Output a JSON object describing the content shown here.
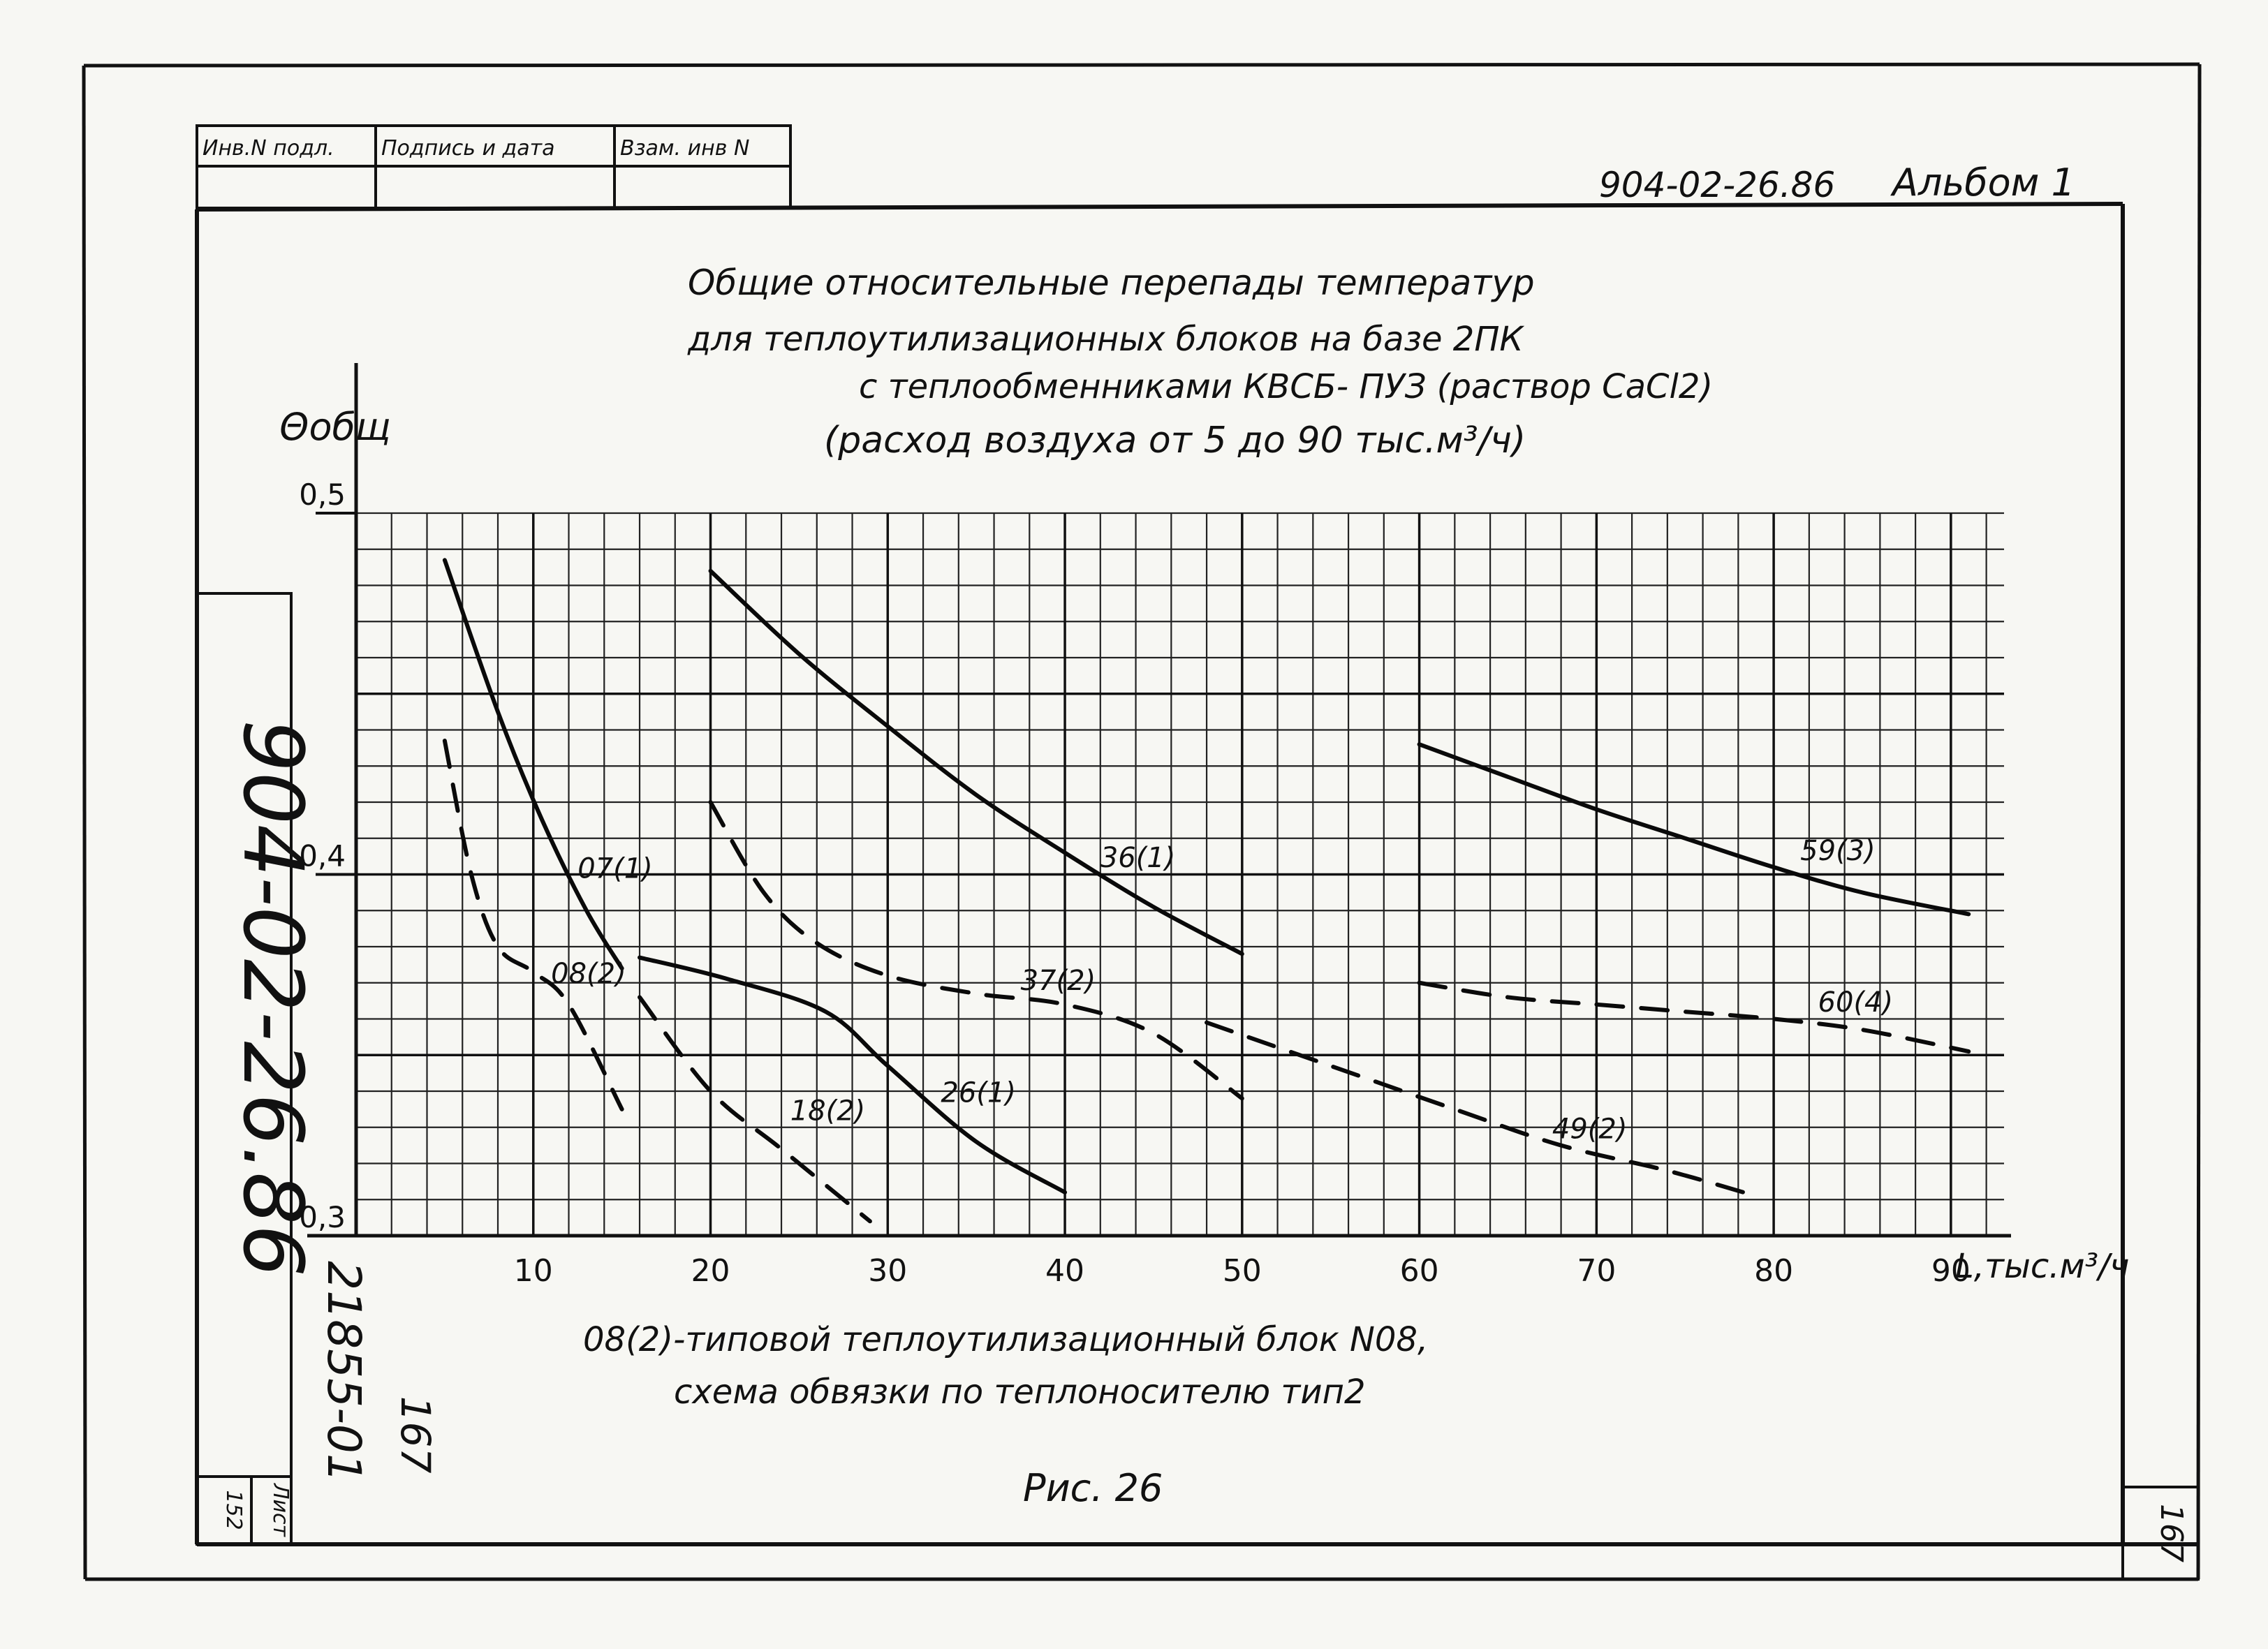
{
  "header": {
    "table_headers": [
      "Инв.N подл.",
      "Подпись и дата",
      "Взам. инв N"
    ],
    "doc_code": "904-02-26.86",
    "album": "Альбом 1"
  },
  "side": {
    "vertical_code": "904-02-26.86",
    "handwritten_code": "21855-01",
    "handwritten_sheet": "167",
    "sheet_label": "Лист",
    "sheet_number": "152",
    "corner_number": "167"
  },
  "chart_data": {
    "type": "line",
    "title": [
      "Общие относительные перепады температур",
      "для теплоутилизационных блоков на базе 2ПК",
      "с теплообменниками КВСБ- ПУЗ (раствор CaCl2)",
      "(расход воздуха от 5 до 90 тыс.м³/ч)"
    ],
    "ylabel": "Θобщ",
    "xlabel": "L,тыс.м³/ч",
    "xlim": [
      0,
      93
    ],
    "ylim": [
      0.3,
      0.5
    ],
    "x_ticks": [
      10,
      20,
      30,
      40,
      50,
      60,
      70,
      80,
      90
    ],
    "x_tick_labels": [
      "10",
      "20",
      "30",
      "40",
      "50",
      "60",
      "70",
      "80",
      "90"
    ],
    "y_ticks": [
      0.3,
      0.4,
      0.5
    ],
    "y_tick_labels": [
      "0,3",
      "0,4",
      "0,5"
    ],
    "grid": true,
    "series": [
      {
        "name": "07(1)",
        "style": "solid",
        "label_at": [
          12.5,
          0.399
        ],
        "points": [
          [
            5,
            0.487
          ],
          [
            8,
            0.445
          ],
          [
            10.5,
            0.415
          ],
          [
            13,
            0.39
          ],
          [
            15,
            0.374
          ]
        ]
      },
      {
        "name": "08(2)",
        "style": "dashed",
        "label_at": [
          11,
          0.37
        ],
        "points": [
          [
            5,
            0.437
          ],
          [
            6.5,
            0.4
          ],
          [
            8,
            0.38
          ],
          [
            10,
            0.373
          ],
          [
            12,
            0.364
          ],
          [
            15,
            0.335
          ]
        ]
      },
      {
        "name": "18(2)",
        "style": "dashed",
        "label_at": [
          24.5,
          0.332
        ],
        "points": [
          [
            16,
            0.366
          ],
          [
            20,
            0.34
          ],
          [
            24,
            0.324
          ],
          [
            29,
            0.304
          ]
        ]
      },
      {
        "name": "26(1)",
        "style": "solid",
        "label_at": [
          33,
          0.337
        ],
        "points": [
          [
            16,
            0.377
          ],
          [
            21,
            0.371
          ],
          [
            26.5,
            0.362
          ],
          [
            30,
            0.347
          ],
          [
            35,
            0.326
          ],
          [
            40,
            0.312
          ]
        ]
      },
      {
        "name": "36(1)",
        "style": "solid",
        "label_at": [
          42,
          0.402
        ],
        "points": [
          [
            20,
            0.484
          ],
          [
            25,
            0.461
          ],
          [
            30,
            0.441
          ],
          [
            35,
            0.422
          ],
          [
            40,
            0.406
          ],
          [
            45,
            0.391
          ],
          [
            50,
            0.378
          ]
        ]
      },
      {
        "name": "37(2)",
        "style": "dashed",
        "label_at": [
          37.5,
          0.368
        ],
        "points": [
          [
            20,
            0.42
          ],
          [
            23,
            0.395
          ],
          [
            26,
            0.381
          ],
          [
            30,
            0.372
          ],
          [
            35,
            0.367
          ],
          [
            40,
            0.364
          ],
          [
            45,
            0.356
          ],
          [
            50,
            0.338
          ]
        ]
      },
      {
        "name": "49(2)",
        "style": "dashed",
        "label_at": [
          67.5,
          0.327
        ],
        "points": [
          [
            48,
            0.359
          ],
          [
            55,
            0.347
          ],
          [
            62,
            0.335
          ],
          [
            68,
            0.325
          ],
          [
            74,
            0.318
          ],
          [
            79,
            0.311
          ]
        ]
      },
      {
        "name": "59(3)",
        "style": "solid",
        "label_at": [
          81.5,
          0.404
        ],
        "points": [
          [
            60,
            0.436
          ],
          [
            65,
            0.427
          ],
          [
            70,
            0.418
          ],
          [
            75,
            0.41
          ],
          [
            80,
            0.402
          ],
          [
            85,
            0.395
          ],
          [
            91,
            0.389
          ]
        ]
      },
      {
        "name": "60(4)",
        "style": "dashed",
        "label_at": [
          82.5,
          0.362
        ],
        "points": [
          [
            60,
            0.37
          ],
          [
            65,
            0.366
          ],
          [
            70,
            0.364
          ],
          [
            75,
            0.362
          ],
          [
            80,
            0.36
          ],
          [
            85,
            0.357
          ],
          [
            91,
            0.351
          ]
        ]
      }
    ]
  },
  "footer": {
    "note_line1": "08(2)-типовой теплоутилизационный блок N08,",
    "note_line2": "схема обвязки по теплоносителю тип2",
    "figure": "Рис. 26"
  }
}
